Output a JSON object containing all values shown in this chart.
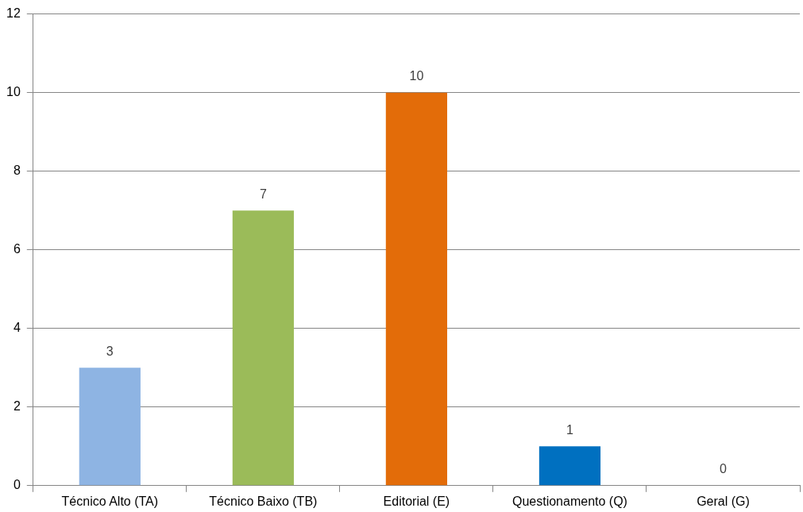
{
  "chart_data": {
    "type": "bar",
    "categories": [
      "Técnico Alto (TA)",
      "Técnico Baixo (TB)",
      "Editorial (E)",
      "Questionamento (Q)",
      "Geral (G)"
    ],
    "values": [
      3,
      7,
      10,
      1,
      0
    ],
    "colors": [
      "#8eb4e3",
      "#9bbb59",
      "#e36c09",
      "#0070c0",
      "#4bacc6"
    ],
    "ylim": [
      0,
      12
    ],
    "yticks": [
      0,
      2,
      4,
      6,
      8,
      10,
      12
    ],
    "grid": "y",
    "legend": false,
    "data_labels": true
  }
}
